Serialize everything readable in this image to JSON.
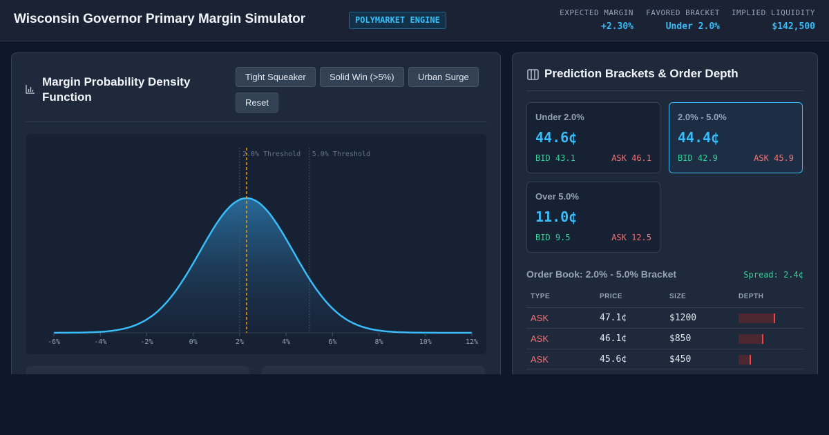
{
  "header": {
    "title": "Wisconsin Governor Primary Margin Simulator",
    "badge": "POLYMARKET ENGINE",
    "stats": [
      {
        "label": "EXPECTED MARGIN",
        "value": "+2.30%"
      },
      {
        "label": "FAVORED BRACKET",
        "value": "Under 2.0%"
      },
      {
        "label": "IMPLIED LIQUIDITY",
        "value": "$142,500"
      }
    ]
  },
  "pdf_panel": {
    "title": "Margin Probability Density Function",
    "icon": "bar-chart-icon",
    "scenarios": [
      "Tight Squeaker",
      "Solid Win (>5%)",
      "Urban Surge",
      "Reset"
    ]
  },
  "chart_data": {
    "type": "area",
    "title": "",
    "xlabel": "",
    "ylabel": "",
    "x_unit": "%",
    "xlim": [
      -6,
      12
    ],
    "x_ticks": [
      "-6%",
      "-4%",
      "-2%",
      "0%",
      "2%",
      "4%",
      "6%",
      "8%",
      "10%",
      "12%"
    ],
    "distribution": {
      "mean": 2.3,
      "sd": 2.0
    },
    "thresholds": [
      {
        "x": 2.0,
        "label": "2.0% Threshold"
      },
      {
        "x": 5.0,
        "label": "5.0% Threshold"
      }
    ],
    "expected_marker": {
      "x": 2.3,
      "color": "#f59e0b"
    },
    "colors": {
      "curve": "#38bdf8",
      "threshold": "#475569"
    }
  },
  "brackets_panel": {
    "title": "Prediction Brackets & Order Depth",
    "icon": "grid-columns-icon",
    "brackets": [
      {
        "label": "Under 2.0%",
        "price": "44.6¢",
        "bid": "BID 43.1",
        "ask": "ASK 46.1",
        "selected": false
      },
      {
        "label": "2.0% - 5.0%",
        "price": "44.4¢",
        "bid": "BID 42.9",
        "ask": "ASK 45.9",
        "selected": true
      },
      {
        "label": "Over 5.0%",
        "price": "11.0¢",
        "bid": "BID 9.5",
        "ask": "ASK 12.5",
        "selected": false
      }
    ]
  },
  "order_book": {
    "title": "Order Book: 2.0% - 5.0% Bracket",
    "spread": "Spread: 2.4¢",
    "columns": [
      "TYPE",
      "PRICE",
      "SIZE",
      "DEPTH"
    ],
    "rows": [
      {
        "type": "ASK",
        "price": "47.1¢",
        "size": "$1200",
        "depth": 1.0
      },
      {
        "type": "ASK",
        "price": "46.1¢",
        "size": "$850",
        "depth": 0.68
      },
      {
        "type": "ASK",
        "price": "45.6¢",
        "size": "$450",
        "depth": 0.34
      }
    ]
  },
  "colors": {
    "accent": "#38bdf8",
    "bid": "#34d399",
    "ask": "#f87171",
    "marker": "#f59e0b"
  }
}
